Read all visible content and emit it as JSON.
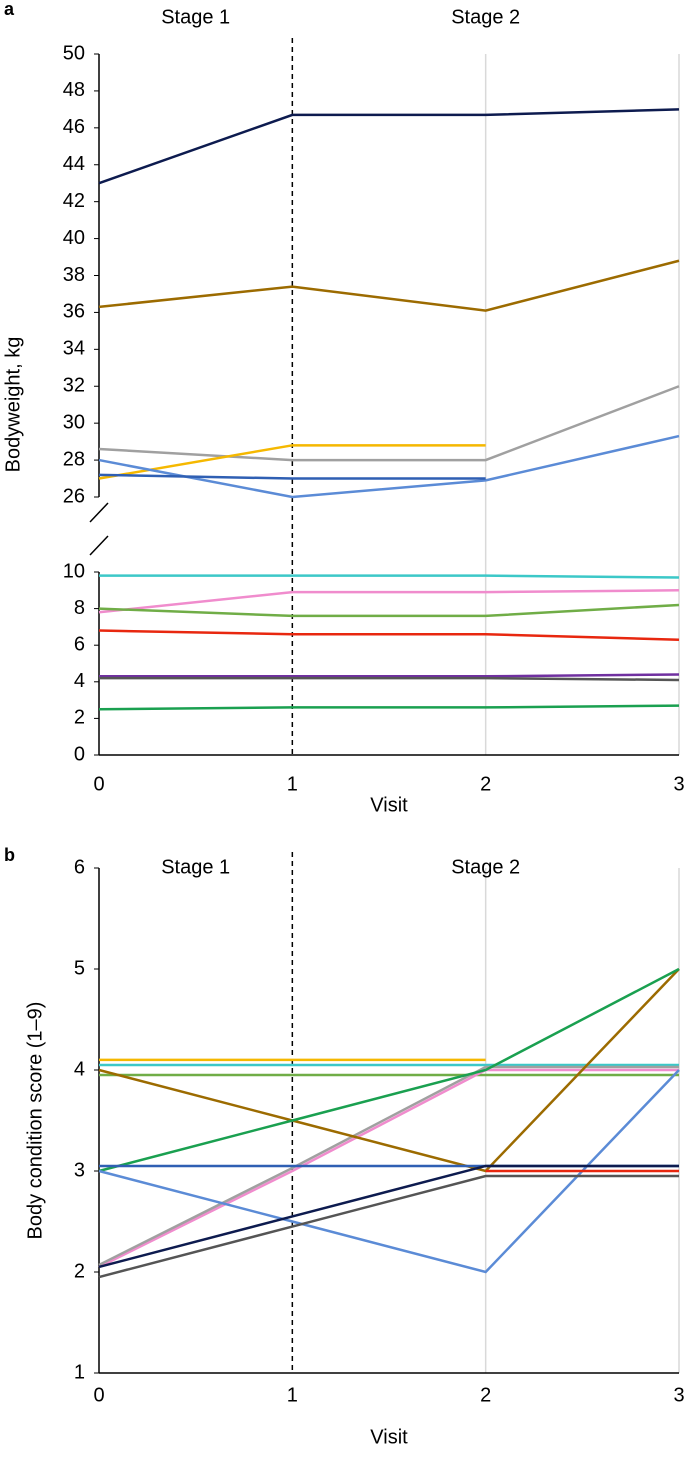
{
  "chart_data": [
    {
      "type": "line",
      "panel_label": "a",
      "annotations": [
        "Stage 1",
        "Stage 2"
      ],
      "divider_x": 1,
      "xlabel": "Visit",
      "ylabel": "Bodyweight, kg",
      "x": [
        0,
        1,
        2,
        3
      ],
      "xlim": [
        0,
        3
      ],
      "xticks": [
        0,
        1,
        2,
        3
      ],
      "axis_break": true,
      "panels": [
        {
          "ylim": [
            26,
            50
          ],
          "yticks": [
            26,
            28,
            30,
            32,
            34,
            36,
            38,
            40,
            42,
            44,
            46,
            48,
            50
          ],
          "series": [
            {
              "color": "#0d1b4f",
              "values": [
                43,
                46.7,
                46.7,
                47
              ]
            },
            {
              "color": "#9c6b00",
              "values": [
                36.3,
                37.4,
                36.1,
                38.8
              ]
            },
            {
              "color": "#a0a0a0",
              "values": [
                28.6,
                28,
                28,
                32
              ]
            },
            {
              "color": "#f5b800",
              "values": [
                27,
                28.8,
                28.8,
                null
              ]
            },
            {
              "color": "#5b8bd6",
              "values": [
                28,
                26,
                26.9,
                29.3
              ]
            },
            {
              "color": "#2f5fb3",
              "values": [
                27.2,
                27,
                27,
                null
              ]
            }
          ]
        },
        {
          "ylim": [
            0,
            10
          ],
          "yticks": [
            0,
            2,
            4,
            6,
            8,
            10
          ],
          "series": [
            {
              "color": "#3cc8c8",
              "values": [
                9.8,
                9.8,
                9.8,
                9.7
              ]
            },
            {
              "color": "#f08ccd",
              "values": [
                7.8,
                8.9,
                8.9,
                9.0
              ]
            },
            {
              "color": "#70ad47",
              "values": [
                8.0,
                7.6,
                7.6,
                8.2
              ]
            },
            {
              "color": "#e8270f",
              "values": [
                6.8,
                6.6,
                6.6,
                6.3
              ]
            },
            {
              "color": "#7030a0",
              "values": [
                4.3,
                4.3,
                4.3,
                4.4
              ]
            },
            {
              "color": "#555555",
              "values": [
                4.2,
                4.2,
                4.2,
                4.1
              ]
            },
            {
              "color": "#1aa050",
              "values": [
                2.5,
                2.6,
                2.6,
                2.7
              ]
            }
          ]
        }
      ]
    },
    {
      "type": "line",
      "panel_label": "b",
      "annotations": [
        "Stage 1",
        "Stage 2"
      ],
      "divider_x": 1,
      "xlabel": "Visit",
      "ylabel": "Body condition score (1–9)",
      "x": [
        0,
        1,
        2,
        3
      ],
      "xlim": [
        0,
        3
      ],
      "xticks": [
        0,
        1,
        2,
        3
      ],
      "panels": [
        {
          "ylim": [
            1,
            6
          ],
          "yticks": [
            1,
            2,
            3,
            4,
            5,
            6
          ],
          "series": [
            {
              "color": "#f5b800",
              "values": [
                4.1,
                4.1,
                4.1,
                null
              ]
            },
            {
              "color": "#3cc8c8",
              "values": [
                4.05,
                4.05,
                4.05,
                4.05
              ]
            },
            {
              "color": "#70ad47",
              "values": [
                3.95,
                3.95,
                3.95,
                3.95
              ]
            },
            {
              "color": "#f08ccd",
              "values": [
                2.05,
                3,
                4,
                4
              ]
            },
            {
              "color": "#a0a0a0",
              "values": [
                2.07,
                3.03,
                4.03,
                4.03
              ]
            },
            {
              "color": "#9c6b00",
              "values": [
                4,
                3.5,
                3,
                5
              ]
            },
            {
              "color": "#1aa050",
              "values": [
                3,
                3.5,
                4,
                5
              ]
            },
            {
              "color": "#2f5fb3",
              "values": [
                3.05,
                3.05,
                3.05,
                3.05
              ]
            },
            {
              "color": "#5b8bd6",
              "values": [
                3,
                2.5,
                2,
                4
              ]
            },
            {
              "color": "#0d1b4f",
              "values": [
                2.05,
                2.55,
                3.05,
                3.05
              ]
            },
            {
              "color": "#e8270f",
              "values": [
                null,
                null,
                3,
                3
              ]
            },
            {
              "color": "#555555",
              "values": [
                1.95,
                2.45,
                2.95,
                2.95
              ]
            }
          ]
        }
      ]
    }
  ]
}
